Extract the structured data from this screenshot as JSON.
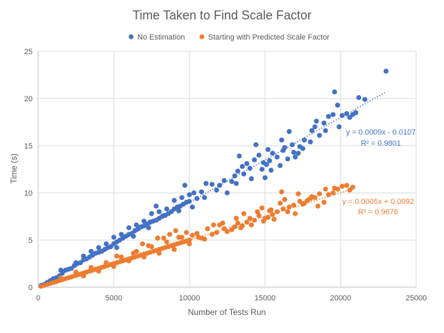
{
  "chart_data": {
    "type": "scatter",
    "title": "Time Taken to Find Scale Factor",
    "xlabel": "Number of Tests Run",
    "ylabel": "Time (s)",
    "xlim": [
      0,
      25000
    ],
    "ylim": [
      0,
      25
    ],
    "xticks": [
      0,
      5000,
      10000,
      15000,
      20000,
      25000
    ],
    "yticks": [
      0,
      5,
      10,
      15,
      20,
      25
    ],
    "xtick_labels": [
      "0",
      "5000",
      "10000",
      "15000",
      "20000",
      "25000"
    ],
    "ytick_labels": [
      "0",
      "5",
      "10",
      "15",
      "20",
      "25"
    ],
    "grid": true,
    "legend_position": "top",
    "series": [
      {
        "name": "No Estimation",
        "color": "#4472C4",
        "trendline": {
          "slope": 0.0009,
          "intercept": -0.0107,
          "x_range": [
            0,
            23000
          ],
          "equation": "y = 0.0009x - 0.0107",
          "r2": "R² = 0.9801"
        },
        "points": [
          [
            200,
            0.2
          ],
          [
            400,
            0.3
          ],
          [
            600,
            0.5
          ],
          [
            800,
            0.7
          ],
          [
            1000,
            0.9
          ],
          [
            1200,
            1.0
          ],
          [
            1400,
            1.2
          ],
          [
            1600,
            1.5
          ],
          [
            1800,
            1.8
          ],
          [
            2000,
            1.9
          ],
          [
            2200,
            2.0
          ],
          [
            2400,
            2.3
          ],
          [
            2600,
            2.5
          ],
          [
            2800,
            2.6
          ],
          [
            3000,
            2.9
          ],
          [
            3200,
            3.0
          ],
          [
            3400,
            3.2
          ],
          [
            3600,
            3.4
          ],
          [
            3800,
            3.6
          ],
          [
            4000,
            3.7
          ],
          [
            4200,
            3.8
          ],
          [
            4400,
            4.0
          ],
          [
            4600,
            4.2
          ],
          [
            4800,
            4.3
          ],
          [
            5000,
            4.6
          ],
          [
            5200,
            4.8
          ],
          [
            5400,
            5.0
          ],
          [
            5600,
            5.2
          ],
          [
            5800,
            5.4
          ],
          [
            6000,
            5.6
          ],
          [
            6200,
            5.7
          ],
          [
            6400,
            6.0
          ],
          [
            6600,
            6.2
          ],
          [
            6800,
            6.4
          ],
          [
            7000,
            6.5
          ],
          [
            7200,
            6.7
          ],
          [
            7400,
            6.9
          ],
          [
            7600,
            7.0
          ],
          [
            7800,
            7.1
          ],
          [
            8000,
            7.3
          ],
          [
            8200,
            7.5
          ],
          [
            8400,
            7.6
          ],
          [
            8600,
            7.8
          ],
          [
            8800,
            8.0
          ],
          [
            9000,
            8.3
          ],
          [
            9200,
            8.5
          ],
          [
            9400,
            8.6
          ],
          [
            9600,
            8.8
          ],
          [
            9800,
            9.0
          ],
          [
            10000,
            9.1
          ],
          [
            1500,
            1.8
          ],
          [
            2500,
            2.6
          ],
          [
            3500,
            3.8
          ],
          [
            4500,
            4.6
          ],
          [
            5500,
            5.6
          ],
          [
            6500,
            6.6
          ],
          [
            7500,
            7.8
          ],
          [
            8500,
            8.3
          ],
          [
            9500,
            9.5
          ],
          [
            10500,
            9.4
          ],
          [
            3000,
            3.3
          ],
          [
            4000,
            4.2
          ],
          [
            5000,
            5.3
          ],
          [
            6000,
            6.3
          ],
          [
            7000,
            7.0
          ],
          [
            8000,
            8.0
          ],
          [
            9000,
            9.2
          ],
          [
            10000,
            9.8
          ],
          [
            10800,
            10.1
          ],
          [
            11500,
            10.9
          ],
          [
            5200,
            4.2
          ],
          [
            6300,
            5.4
          ],
          [
            7300,
            6.3
          ],
          [
            8300,
            7.6
          ],
          [
            9300,
            8.1
          ],
          [
            10200,
            8.5
          ],
          [
            11000,
            9.5
          ],
          [
            11800,
            10.3
          ],
          [
            12300,
            11.3
          ],
          [
            12800,
            11.2
          ],
          [
            13000,
            11.8
          ],
          [
            13200,
            12.3
          ],
          [
            13500,
            12.8
          ],
          [
            13800,
            13.1
          ],
          [
            14000,
            12.6
          ],
          [
            14300,
            13.5
          ],
          [
            14600,
            14.0
          ],
          [
            14900,
            13.2
          ],
          [
            15200,
            14.6
          ],
          [
            15500,
            14.2
          ],
          [
            12000,
            10.8
          ],
          [
            12500,
            10.0
          ],
          [
            13100,
            11.0
          ],
          [
            13600,
            12.0
          ],
          [
            14100,
            11.5
          ],
          [
            14800,
            12.5
          ],
          [
            15300,
            13.4
          ],
          [
            15800,
            13.8
          ],
          [
            16200,
            14.5
          ],
          [
            16500,
            13.6
          ],
          [
            15000,
            11.6
          ],
          [
            15400,
            12.4
          ],
          [
            16000,
            12.9
          ],
          [
            16300,
            14.8
          ],
          [
            16600,
            16.5
          ],
          [
            16900,
            14.3
          ],
          [
            17300,
            14.9
          ],
          [
            17600,
            15.6
          ],
          [
            18000,
            15.4
          ],
          [
            18300,
            17.0
          ],
          [
            17000,
            13.8
          ],
          [
            17500,
            14.7
          ],
          [
            18100,
            16.6
          ],
          [
            18600,
            16.1
          ],
          [
            18900,
            17.4
          ],
          [
            19200,
            18.1
          ],
          [
            19500,
            18.3
          ],
          [
            19800,
            19.3
          ],
          [
            20100,
            18.2
          ],
          [
            20400,
            18.4
          ],
          [
            16100,
            15.6
          ],
          [
            17200,
            14.2
          ],
          [
            19000,
            16.6
          ],
          [
            19600,
            20.7
          ],
          [
            20600,
            18.0
          ],
          [
            21200,
            20.1
          ],
          [
            21600,
            19.9
          ],
          [
            23000,
            22.9
          ],
          [
            9700,
            10.8
          ],
          [
            10300,
            10.0
          ],
          [
            11100,
            11.0
          ],
          [
            13300,
            13.9
          ],
          [
            14400,
            15.1
          ],
          [
            15100,
            13.0
          ],
          [
            16800,
            15.1
          ],
          [
            18400,
            17.6
          ],
          [
            19900,
            17.0
          ],
          [
            20800,
            18.3
          ],
          [
            21000,
            18.5
          ],
          [
            7800,
            8.6
          ]
        ]
      },
      {
        "name": "Starting with Predicted Scale Factor",
        "color": "#ED7D31",
        "trendline": {
          "slope": 0.0005,
          "intercept": 0.0092,
          "x_range": [
            0,
            21000
          ],
          "equation": "y = 0.0005x + 0.0092",
          "r2": "R² = 0.9676"
        },
        "points": [
          [
            200,
            0.1
          ],
          [
            400,
            0.2
          ],
          [
            600,
            0.3
          ],
          [
            800,
            0.4
          ],
          [
            1000,
            0.5
          ],
          [
            1200,
            0.6
          ],
          [
            1400,
            0.7
          ],
          [
            1600,
            0.8
          ],
          [
            1800,
            0.9
          ],
          [
            2000,
            1.0
          ],
          [
            2200,
            1.1
          ],
          [
            2400,
            1.2
          ],
          [
            2600,
            1.3
          ],
          [
            2800,
            1.4
          ],
          [
            3000,
            1.5
          ],
          [
            3200,
            1.6
          ],
          [
            3400,
            1.7
          ],
          [
            3600,
            1.8
          ],
          [
            3800,
            1.9
          ],
          [
            4000,
            2.0
          ],
          [
            4200,
            2.1
          ],
          [
            4400,
            2.2
          ],
          [
            4600,
            2.3
          ],
          [
            4800,
            2.4
          ],
          [
            5000,
            2.5
          ],
          [
            5200,
            2.6
          ],
          [
            5400,
            2.7
          ],
          [
            5600,
            2.8
          ],
          [
            5800,
            2.9
          ],
          [
            6000,
            3.0
          ],
          [
            6200,
            3.1
          ],
          [
            6400,
            3.2
          ],
          [
            6600,
            3.3
          ],
          [
            6800,
            3.4
          ],
          [
            7000,
            3.5
          ],
          [
            7200,
            3.6
          ],
          [
            7400,
            3.7
          ],
          [
            7600,
            3.8
          ],
          [
            7800,
            3.9
          ],
          [
            8000,
            4.0
          ],
          [
            8200,
            4.1
          ],
          [
            8400,
            4.2
          ],
          [
            8600,
            4.3
          ],
          [
            8800,
            4.4
          ],
          [
            9000,
            4.5
          ],
          [
            9200,
            4.6
          ],
          [
            9400,
            4.7
          ],
          [
            9600,
            4.8
          ],
          [
            9800,
            4.9
          ],
          [
            10000,
            5.0
          ],
          [
            1500,
            1.0
          ],
          [
            2500,
            1.6
          ],
          [
            3500,
            2.1
          ],
          [
            4500,
            2.6
          ],
          [
            5500,
            3.2
          ],
          [
            6500,
            3.8
          ],
          [
            7500,
            4.3
          ],
          [
            8500,
            4.8
          ],
          [
            9500,
            5.3
          ],
          [
            10500,
            5.7
          ],
          [
            3000,
            1.2
          ],
          [
            4000,
            1.7
          ],
          [
            5000,
            2.2
          ],
          [
            6000,
            2.8
          ],
          [
            7000,
            3.2
          ],
          [
            8000,
            3.6
          ],
          [
            9000,
            4.0
          ],
          [
            10000,
            4.6
          ],
          [
            10800,
            5.2
          ],
          [
            11500,
            5.6
          ],
          [
            5200,
            3.3
          ],
          [
            6300,
            3.6
          ],
          [
            7300,
            4.4
          ],
          [
            8300,
            5.2
          ],
          [
            9300,
            5.3
          ],
          [
            10200,
            5.5
          ],
          [
            11000,
            5.1
          ],
          [
            11800,
            5.8
          ],
          [
            12300,
            6.2
          ],
          [
            12800,
            6.1
          ],
          [
            13000,
            6.4
          ],
          [
            13200,
            6.8
          ],
          [
            13500,
            6.5
          ],
          [
            13800,
            6.9
          ],
          [
            14000,
            7.3
          ],
          [
            14300,
            7.1
          ],
          [
            14600,
            7.6
          ],
          [
            14900,
            7.0
          ],
          [
            15200,
            7.4
          ],
          [
            15500,
            7.7
          ],
          [
            12000,
            6.6
          ],
          [
            12500,
            5.9
          ],
          [
            13100,
            7.3
          ],
          [
            13600,
            7.8
          ],
          [
            14100,
            6.6
          ],
          [
            14800,
            8.4
          ],
          [
            15300,
            8.1
          ],
          [
            15800,
            8.0
          ],
          [
            16200,
            8.3
          ],
          [
            16500,
            8.0
          ],
          [
            15000,
            7.3
          ],
          [
            15400,
            8.2
          ],
          [
            16000,
            8.9
          ],
          [
            16300,
            9.3
          ],
          [
            16600,
            8.5
          ],
          [
            16900,
            8.7
          ],
          [
            17300,
            9.1
          ],
          [
            17600,
            8.9
          ],
          [
            18000,
            9.4
          ],
          [
            18300,
            9.5
          ],
          [
            17000,
            7.8
          ],
          [
            17500,
            8.8
          ],
          [
            18100,
            9.6
          ],
          [
            18600,
            9.9
          ],
          [
            18900,
            9.0
          ],
          [
            19200,
            9.8
          ],
          [
            19500,
            10.0
          ],
          [
            19800,
            10.4
          ],
          [
            20100,
            10.7
          ],
          [
            20400,
            10.8
          ],
          [
            16100,
            10.1
          ],
          [
            17200,
            9.9
          ],
          [
            19000,
            10.4
          ],
          [
            19600,
            10.5
          ],
          [
            20600,
            10.3
          ],
          [
            20800,
            10.6
          ],
          [
            11200,
            6.2
          ],
          [
            12200,
            6.8
          ],
          [
            14500,
            8.0
          ],
          [
            9800,
            5.8
          ],
          [
            7900,
            5.2
          ],
          [
            8700,
            5.6
          ],
          [
            9100,
            6.0
          ],
          [
            10600,
            5.3
          ],
          [
            11600,
            6.6
          ],
          [
            13400,
            6.3
          ],
          [
            15600,
            7.2
          ],
          [
            17800,
            9.2
          ],
          [
            18500,
            8.6
          ],
          [
            6900,
            4.6
          ]
        ]
      }
    ]
  }
}
